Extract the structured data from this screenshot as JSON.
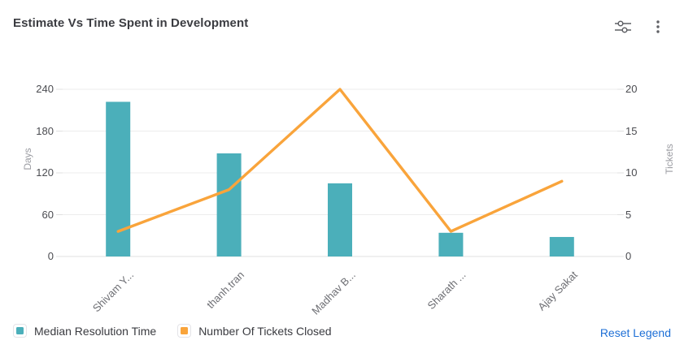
{
  "header": {
    "title": "Estimate Vs Time Spent in Development",
    "icons": [
      "filter-sliders-icon",
      "kebab-menu-icon"
    ]
  },
  "legend": {
    "reset_label": "Reset Legend",
    "reset_color": "#1d6fd6"
  },
  "colors": {
    "bar": "#4BAFBA",
    "line": "#F9A43B",
    "gridline": "#ececec",
    "axis_line": "#e0e0e0",
    "tick_label": "#4b4c51",
    "x_label": "#6e6f74",
    "icon": "#5f6065"
  },
  "chart_data": {
    "type": "combo",
    "categories": [
      "Shivam Y...",
      "thanh.tran",
      "Madhav B...",
      "Sharath ...",
      "Ajay Sakat"
    ],
    "series": [
      {
        "name": "Median Resolution Time",
        "type": "bar",
        "axis": "left",
        "color": "#4BAFBA",
        "values": [
          222,
          148,
          105,
          34,
          28
        ]
      },
      {
        "name": "Number Of Tickets Closed",
        "type": "line",
        "axis": "right",
        "color": "#F9A43B",
        "values": [
          3,
          8,
          20,
          3,
          9
        ]
      }
    ],
    "left_axis": {
      "label": "Days",
      "min": 0,
      "max": 240,
      "ticks": [
        0,
        60,
        120,
        180,
        240
      ]
    },
    "right_axis": {
      "label": "Tickets",
      "min": 0,
      "max": 20,
      "ticks": [
        0,
        5,
        10,
        15,
        20
      ]
    },
    "grid": true,
    "legend_position": "bottom"
  }
}
